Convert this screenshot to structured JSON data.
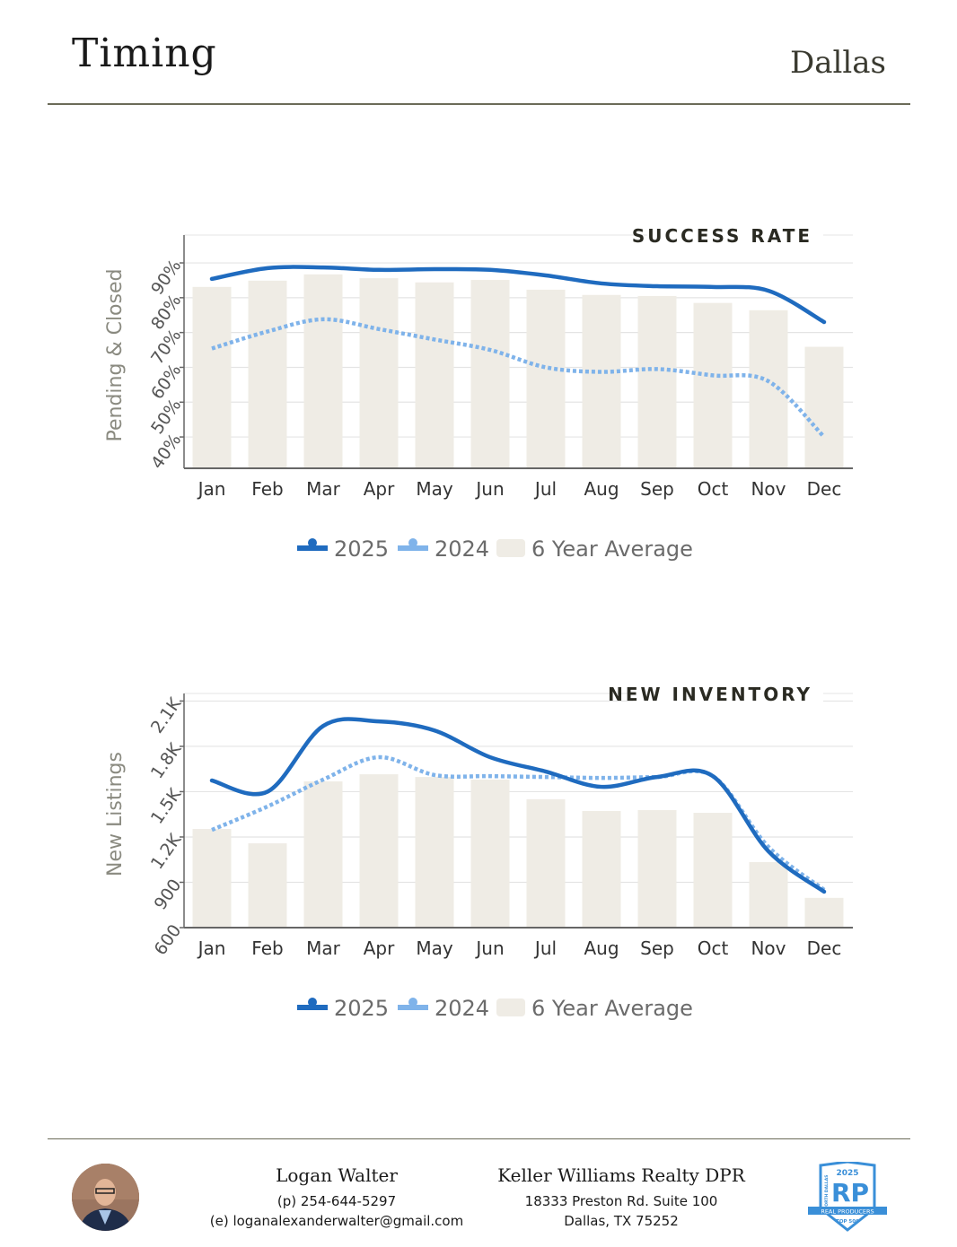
{
  "header": {
    "title": "Timing",
    "city": "Dallas"
  },
  "chart_data": [
    {
      "type": "bar+line",
      "title": "SUCCESS RATE",
      "ylabel": "Pending & Closed",
      "categories": [
        "Jan",
        "Feb",
        "Mar",
        "Apr",
        "May",
        "Jun",
        "Jul",
        "Aug",
        "Sep",
        "Oct",
        "Nov",
        "Dec"
      ],
      "yticks": [
        40,
        50,
        60,
        70,
        80,
        90
      ],
      "ytick_labels": [
        "40%",
        "50%",
        "60%",
        "70%",
        "80%",
        "90%"
      ],
      "ylim": [
        31,
        98
      ],
      "series": [
        {
          "name": "6 Year Average",
          "kind": "bar",
          "values": [
            83.1,
            84.9,
            86.7,
            85.6,
            84.4,
            85.1,
            82.3,
            80.8,
            80.5,
            78.5,
            76.4,
            65.9
          ]
        },
        {
          "name": "2025",
          "kind": "line",
          "values": [
            85.4,
            88.5,
            88.7,
            88.0,
            88.2,
            88.0,
            86.4,
            84.1,
            83.3,
            83.1,
            82.0,
            73.0
          ]
        },
        {
          "name": "2024",
          "kind": "dotted-line",
          "values": [
            65.4,
            70.3,
            73.8,
            71.0,
            68.0,
            65.0,
            60.0,
            58.7,
            59.5,
            57.7,
            56.0,
            40.0
          ]
        }
      ],
      "legend": [
        "2025",
        "2024",
        "6 Year Average"
      ]
    },
    {
      "type": "bar+line",
      "title": "NEW INVENTORY",
      "ylabel": "New Listings",
      "categories": [
        "Jan",
        "Feb",
        "Mar",
        "Apr",
        "May",
        "Jun",
        "Jul",
        "Aug",
        "Sep",
        "Oct",
        "Nov",
        "Dec"
      ],
      "yticks": [
        600,
        900,
        1200,
        1500,
        1800,
        2100
      ],
      "ytick_labels": [
        "600",
        "900",
        "1.2K",
        "1.5K",
        "1.8K",
        "2.1K"
      ],
      "ylim": [
        600,
        2150
      ],
      "series": [
        {
          "name": "6 Year Average",
          "kind": "bar",
          "values": [
            1253,
            1158,
            1568,
            1615,
            1597,
            1580,
            1450,
            1372,
            1378,
            1360,
            1034,
            797
          ]
        },
        {
          "name": "2025",
          "kind": "line",
          "values": [
            1574,
            1500,
            1935,
            1965,
            1905,
            1728,
            1633,
            1532,
            1597,
            1603,
            1105,
            838
          ]
        },
        {
          "name": "2024",
          "kind": "dotted-line",
          "values": [
            1247,
            1402,
            1580,
            1728,
            1610,
            1603,
            1597,
            1591,
            1597,
            1603,
            1134,
            850
          ]
        }
      ],
      "legend": [
        "2025",
        "2024",
        "6 Year Average"
      ]
    }
  ],
  "colors": {
    "line2025": "#1f6bbf",
    "line2024": "#7fb3ea",
    "bar": "#efece5",
    "grid": "#e4e4e4",
    "axis": "#666666"
  },
  "footer": {
    "agent_name": "Logan Walter",
    "phone": "(p) 254-644-5297",
    "email": "(e) loganalexanderwalter@gmail.com",
    "company": "Keller Williams Realty DPR",
    "address1": "18333 Preston Rd. Suite 100",
    "address2": "Dallas, TX 75252",
    "badge": {
      "year": "2025",
      "logo": "RP",
      "side": "NORTH DALLAS",
      "ribbon": "REAL PRODUCERS",
      "rank": "TOP 500"
    }
  }
}
